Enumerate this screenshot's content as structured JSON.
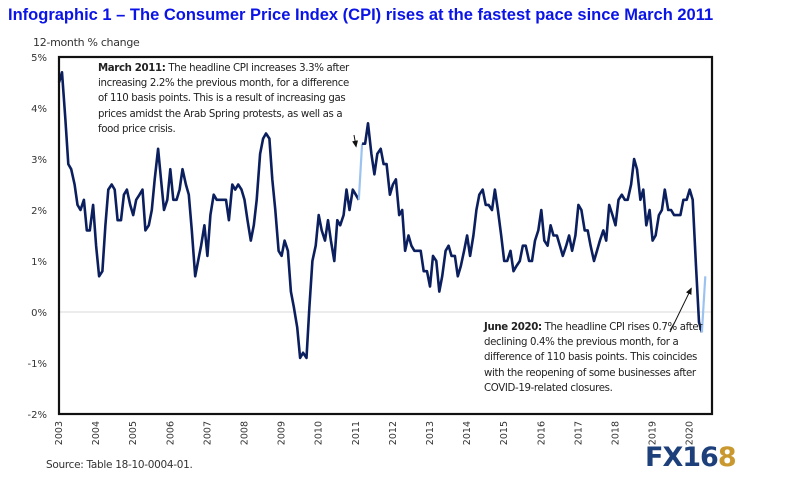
{
  "title": "Infographic 1 –  The Consumer Price Index (CPI) rises at the fastest pace since March 2011",
  "source": "Source: Table 18-10-0004-01.",
  "logo": {
    "main": "FX16",
    "accent": "8"
  },
  "colors": {
    "title": "#0a14e6",
    "line": "#0b1f5e",
    "highlight": "#9cc3f0",
    "logo_blue": "#1d3f7a",
    "logo_gold": "#c9982e"
  },
  "annotations": [
    {
      "bold": "March 2011:",
      "text": " The headline CPI increases 3.3% after increasing 2.2% the previous month, for a difference of 110 basis points. This is a result of increasing gas prices amidst the Arab Spring protests, as well as a food price crisis."
    },
    {
      "bold": "June 2020:",
      "text": " The headline CPI rises 0.7% after declining 0.4% the previous month, for a difference of 110 basis points. This coincides with the reopening of some businesses after COVID-19-related closures."
    }
  ],
  "chart_data": {
    "type": "line",
    "title": "Infographic 1 –  The Consumer Price Index (CPI) rises at the fastest pace since March 2011",
    "ylabel": "12-month % change",
    "xlabel": "",
    "ylim": [
      -2,
      5
    ],
    "xlim": [
      2003.0,
      2020.5
    ],
    "yticks": [
      "5%",
      "4%",
      "3%",
      "2%",
      "1%",
      "0%",
      "-1%",
      "-2%"
    ],
    "ytick_values": [
      5,
      4,
      3,
      2,
      1,
      0,
      -1,
      -2
    ],
    "xticks": [
      "2003",
      "2004",
      "2005",
      "2006",
      "2007",
      "2008",
      "2009",
      "2010",
      "2011",
      "2012",
      "2013",
      "2014",
      "2015",
      "2016",
      "2017",
      "2018",
      "2019",
      "2020"
    ],
    "grid": "zero-line only",
    "series": [
      {
        "name": "CPI 12-month % change",
        "x": [
          2003.0,
          2003.08,
          2003.17,
          2003.25,
          2003.33,
          2003.42,
          2003.5,
          2003.58,
          2003.67,
          2003.75,
          2003.83,
          2003.92,
          2004.0,
          2004.08,
          2004.17,
          2004.25,
          2004.33,
          2004.42,
          2004.5,
          2004.58,
          2004.67,
          2004.75,
          2004.83,
          2004.92,
          2005.0,
          2005.08,
          2005.17,
          2005.25,
          2005.33,
          2005.42,
          2005.5,
          2005.58,
          2005.67,
          2005.75,
          2005.83,
          2005.92,
          2006.0,
          2006.08,
          2006.17,
          2006.25,
          2006.33,
          2006.42,
          2006.5,
          2006.58,
          2006.67,
          2006.75,
          2006.83,
          2006.92,
          2007.0,
          2007.08,
          2007.17,
          2007.25,
          2007.33,
          2007.42,
          2007.5,
          2007.58,
          2007.67,
          2007.75,
          2007.83,
          2007.92,
          2008.0,
          2008.08,
          2008.17,
          2008.25,
          2008.33,
          2008.42,
          2008.5,
          2008.58,
          2008.67,
          2008.75,
          2008.83,
          2008.92,
          2009.0,
          2009.08,
          2009.17,
          2009.25,
          2009.33,
          2009.42,
          2009.5,
          2009.58,
          2009.67,
          2009.75,
          2009.83,
          2009.92,
          2010.0,
          2010.08,
          2010.17,
          2010.25,
          2010.33,
          2010.42,
          2010.5,
          2010.58,
          2010.67,
          2010.75,
          2010.83,
          2010.92,
          2011.0,
          2011.08
        ],
        "values": [
          4.5,
          4.7,
          3.8,
          2.9,
          2.8,
          2.5,
          2.1,
          2.0,
          2.2,
          1.6,
          1.6,
          2.1,
          1.3,
          0.7,
          0.8,
          1.7,
          2.4,
          2.5,
          2.4,
          1.8,
          1.8,
          2.3,
          2.4,
          2.1,
          1.9,
          2.2,
          2.3,
          2.4,
          1.6,
          1.7,
          2.0,
          2.6,
          3.2,
          2.6,
          2.0,
          2.2,
          2.8,
          2.2,
          2.2,
          2.4,
          2.8,
          2.5,
          2.3,
          1.6,
          0.7,
          1.0,
          1.3,
          1.7,
          1.1,
          1.9,
          2.3,
          2.2,
          2.2,
          2.2,
          2.2,
          1.8,
          2.5,
          2.4,
          2.5,
          2.4,
          2.2,
          1.8,
          1.4,
          1.7,
          2.2,
          3.1,
          3.4,
          3.5,
          3.4,
          2.6,
          2.0,
          1.2,
          1.1,
          1.4,
          1.2,
          0.4,
          0.1,
          -0.3,
          -0.9,
          -0.8,
          -0.9,
          0.1,
          1.0,
          1.3,
          1.9,
          1.6,
          1.4,
          1.8,
          1.4,
          1.0,
          1.8,
          1.7,
          1.9,
          2.4,
          2.0,
          2.4,
          2.3,
          2.2
        ]
      },
      {
        "name": "March 2011 jump (highlight)",
        "x": [
          2011.08,
          2011.17
        ],
        "values": [
          2.2,
          3.3
        ]
      },
      {
        "name": "CPI 12-month % change (cont.)",
        "x": [
          2011.17,
          2011.25,
          2011.33,
          2011.42,
          2011.5,
          2011.58,
          2011.67,
          2011.75,
          2011.83,
          2011.92,
          2012.0,
          2012.08,
          2012.17,
          2012.25,
          2012.33,
          2012.42,
          2012.5,
          2012.58,
          2012.67,
          2012.75,
          2012.83,
          2012.92,
          2013.0,
          2013.08,
          2013.17,
          2013.25,
          2013.33,
          2013.42,
          2013.5,
          2013.58,
          2013.67,
          2013.75,
          2013.83,
          2013.92,
          2014.0,
          2014.08,
          2014.17,
          2014.25,
          2014.33,
          2014.42,
          2014.5,
          2014.58,
          2014.67,
          2014.75,
          2014.83,
          2014.92,
          2015.0,
          2015.08,
          2015.17,
          2015.25,
          2015.33,
          2015.42,
          2015.5,
          2015.58,
          2015.67,
          2015.75,
          2015.83,
          2015.92,
          2016.0,
          2016.08,
          2016.17,
          2016.25,
          2016.33,
          2016.42,
          2016.5,
          2016.58,
          2016.67,
          2016.75,
          2016.83,
          2016.92,
          2017.0,
          2017.08,
          2017.17,
          2017.25,
          2017.33,
          2017.42,
          2017.5,
          2017.58,
          2017.67,
          2017.75,
          2017.83,
          2017.92,
          2018.0,
          2018.08,
          2018.17,
          2018.25,
          2018.33,
          2018.42,
          2018.5,
          2018.58,
          2018.67,
          2018.75,
          2018.83,
          2018.92,
          2019.0,
          2019.08,
          2019.17,
          2019.25,
          2019.33,
          2019.42,
          2019.5,
          2019.58,
          2019.67,
          2019.75,
          2019.83,
          2019.92,
          2020.0,
          2020.08,
          2020.17,
          2020.25,
          2020.33
        ],
        "values": [
          3.3,
          3.3,
          3.7,
          3.1,
          2.7,
          3.1,
          3.2,
          2.9,
          2.9,
          2.3,
          2.5,
          2.6,
          1.9,
          2.0,
          1.2,
          1.5,
          1.3,
          1.2,
          1.2,
          1.2,
          0.8,
          0.8,
          0.5,
          1.1,
          1.0,
          0.4,
          0.7,
          1.2,
          1.3,
          1.1,
          1.1,
          0.7,
          0.9,
          1.2,
          1.5,
          1.1,
          1.5,
          2.0,
          2.3,
          2.4,
          2.1,
          2.1,
          2.0,
          2.4,
          2.0,
          1.5,
          1.0,
          1.0,
          1.2,
          0.8,
          0.9,
          1.0,
          1.3,
          1.3,
          1.0,
          1.0,
          1.4,
          1.6,
          2.0,
          1.4,
          1.3,
          1.7,
          1.5,
          1.5,
          1.3,
          1.1,
          1.3,
          1.5,
          1.2,
          1.5,
          2.1,
          2.0,
          1.6,
          1.6,
          1.3,
          1.0,
          1.2,
          1.4,
          1.6,
          1.4,
          2.1,
          1.9,
          1.7,
          2.2,
          2.3,
          2.2,
          2.2,
          2.5,
          3.0,
          2.8,
          2.2,
          2.4,
          1.7,
          2.0,
          1.4,
          1.5,
          1.9,
          2.0,
          2.4,
          2.0,
          2.0,
          1.9,
          1.9,
          1.9,
          2.2,
          2.2,
          2.4,
          2.2,
          0.9,
          -0.2,
          -0.4
        ]
      },
      {
        "name": "June 2020 rebound (highlight)",
        "x": [
          2020.33,
          2020.42
        ],
        "values": [
          -0.4,
          0.7
        ]
      }
    ],
    "annotations": [
      {
        "label": "March 2011",
        "target_x": 2011.17,
        "target_y": 3.3
      },
      {
        "label": "June 2020",
        "target_x": 2020.42,
        "target_y": 0.7
      }
    ]
  }
}
